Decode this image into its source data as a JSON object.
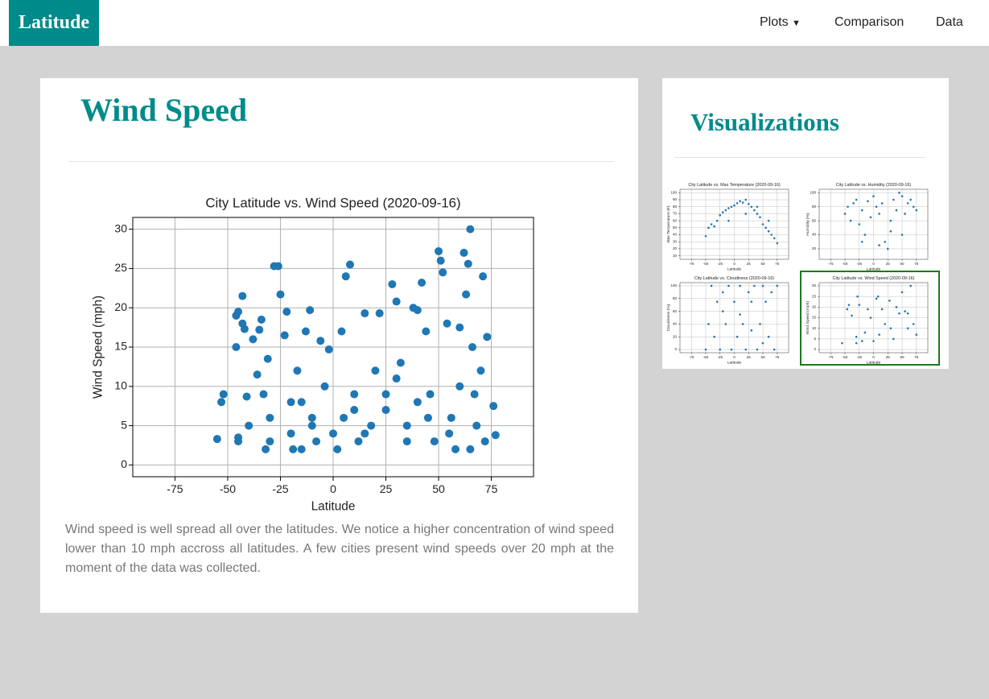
{
  "navbar": {
    "brand": "Latitude",
    "links": [
      "Plots",
      "Comparison",
      "Data"
    ]
  },
  "main": {
    "title": "Wind Speed",
    "chart_data": {
      "type": "scatter",
      "title": "City Latitude vs. Wind Speed (2020-09-16)",
      "x_label": "Latitude",
      "y_label": "Wind Speed (mph)",
      "color": "#1f77b4",
      "grid": true,
      "xlim": [
        -95,
        95
      ],
      "ylim": [
        -1.5,
        31.5
      ],
      "xticks": [
        -75,
        -50,
        -25,
        0,
        25,
        50,
        75
      ],
      "yticks": [
        0,
        5,
        10,
        15,
        20,
        25,
        30
      ],
      "x": [
        -55,
        -53,
        -52,
        -46,
        -45,
        -46,
        -45,
        -45,
        -43,
        -43,
        -42,
        -41,
        -40,
        -38,
        -36,
        -35,
        -34,
        -33,
        -32,
        -31,
        -30,
        -28,
        -26,
        -25,
        -23,
        -22,
        -20,
        -19,
        -17,
        -15,
        -13,
        -11,
        -10,
        -8,
        -6,
        -4,
        -2,
        0,
        2,
        4,
        6,
        8,
        10,
        12,
        15,
        18,
        20,
        22,
        25,
        28,
        30,
        32,
        35,
        38,
        40,
        42,
        44,
        46,
        48,
        50,
        51,
        52,
        54,
        56,
        58,
        60,
        62,
        63,
        64,
        65,
        66,
        67,
        68,
        70,
        71,
        72,
        73,
        76,
        77,
        -30,
        -20,
        -10,
        5,
        15,
        25,
        35,
        45,
        55,
        65,
        -15,
        10,
        30,
        40,
        60
      ],
      "values": [
        3.3,
        8,
        9,
        19,
        19.5,
        15,
        3.5,
        3,
        21.5,
        18,
        17.3,
        8.7,
        5,
        16,
        11.5,
        17.2,
        18.5,
        9,
        2,
        13.5,
        6,
        25.3,
        25.3,
        21.7,
        16.5,
        19.5,
        4,
        2,
        12,
        8,
        17,
        19.7,
        6,
        3,
        15.8,
        10,
        14.7,
        4,
        2,
        17,
        24,
        25.5,
        7,
        3,
        19.3,
        5,
        12,
        19.3,
        9,
        23,
        20.8,
        13,
        5,
        20,
        19.7,
        23.2,
        17,
        9,
        3,
        27.2,
        26,
        24.5,
        18,
        6,
        2,
        17.5,
        27,
        21.7,
        25.6,
        30,
        15,
        9,
        5,
        12,
        24,
        3,
        16.3,
        7.5,
        3.8,
        3,
        8,
        5,
        6,
        4,
        7,
        3,
        6,
        4,
        2,
        2,
        9,
        11,
        8,
        10
      ]
    },
    "description": "Wind speed is well spread all over the latitudes. We notice a higher concentration of wind speed lower than 10 mph accross all latitudes. A few cities present wind speeds over 20 mph at the moment of the data was collected."
  },
  "sidebar": {
    "title": "Visualizations",
    "thumbnails": [
      {
        "type": "scatter",
        "title": "City Latitude vs. Max Temperature (2020-09-16)",
        "x_label": "Latitude",
        "y_label": "Max Temperature (F)",
        "color": "#1f77b4",
        "grid": true,
        "xlim": [
          -95,
          95
        ],
        "ylim": [
          5,
          105
        ],
        "xticks": [
          -75,
          -50,
          -25,
          0,
          25,
          50,
          75
        ],
        "yticks": [
          10,
          20,
          30,
          40,
          50,
          60,
          70,
          80,
          90,
          100
        ],
        "x": [
          -50,
          -45,
          -40,
          -35,
          -30,
          -25,
          -20,
          -15,
          -10,
          -5,
          0,
          5,
          10,
          15,
          20,
          25,
          30,
          35,
          40,
          45,
          50,
          55,
          60,
          65,
          70,
          75,
          -10,
          20,
          40,
          60
        ],
        "values": [
          38,
          50,
          55,
          52,
          60,
          68,
          72,
          75,
          78,
          80,
          82,
          85,
          88,
          86,
          90,
          84,
          80,
          75,
          70,
          65,
          55,
          50,
          45,
          40,
          35,
          28,
          60,
          70,
          80,
          60
        ]
      },
      {
        "type": "scatter",
        "title": "City Latitude vs. Humidity (2020-09-16)",
        "x_label": "Latitude",
        "y_label": "Humidity (%)",
        "color": "#1f77b4",
        "grid": true,
        "xlim": [
          -95,
          95
        ],
        "ylim": [
          5,
          105
        ],
        "xticks": [
          -75,
          -50,
          -25,
          0,
          25,
          50,
          75
        ],
        "yticks": [
          20,
          40,
          60,
          80,
          100
        ],
        "x": [
          -50,
          -45,
          -40,
          -35,
          -30,
          -25,
          -20,
          -15,
          -10,
          -5,
          0,
          5,
          10,
          15,
          20,
          25,
          30,
          35,
          40,
          45,
          50,
          55,
          60,
          65,
          70,
          75,
          -20,
          10,
          30,
          50
        ],
        "values": [
          70,
          80,
          60,
          85,
          90,
          55,
          75,
          40,
          88,
          65,
          95,
          80,
          70,
          85,
          30,
          20,
          60,
          90,
          75,
          100,
          95,
          70,
          85,
          90,
          80,
          75,
          30,
          25,
          45,
          40
        ]
      },
      {
        "type": "scatter",
        "title": "City Latitude vs. Cloudiness (2020-09-16)",
        "x_label": "Latitude",
        "y_label": "Cloudiness (%)",
        "color": "#1f77b4",
        "grid": true,
        "xlim": [
          -95,
          95
        ],
        "ylim": [
          -5,
          105
        ],
        "xticks": [
          -75,
          -50,
          -25,
          0,
          25,
          50,
          75
        ],
        "yticks": [
          0,
          20,
          40,
          60,
          80,
          100
        ],
        "x": [
          -50,
          -45,
          -40,
          -35,
          -30,
          -25,
          -20,
          -15,
          -10,
          -5,
          0,
          5,
          10,
          15,
          20,
          25,
          30,
          35,
          40,
          45,
          50,
          55,
          60,
          65,
          70,
          75,
          -20,
          10,
          30,
          50
        ],
        "values": [
          0,
          40,
          100,
          20,
          75,
          0,
          90,
          40,
          100,
          0,
          75,
          20,
          100,
          40,
          0,
          90,
          75,
          100,
          0,
          40,
          100,
          75,
          20,
          90,
          0,
          100,
          60,
          55,
          30,
          10
        ]
      },
      {
        "type": "scatter",
        "title": "City Latitude vs. Wind Speed (2020-09-16)",
        "x_label": "Latitude",
        "y_label": "Wind Speed (mph)",
        "color": "#1f77b4",
        "grid": true,
        "xlim": [
          -95,
          95
        ],
        "ylim": [
          -1.5,
          31.5
        ],
        "xticks": [
          -75,
          -50,
          -25,
          0,
          25,
          50,
          75
        ],
        "yticks": [
          0,
          5,
          10,
          15,
          20,
          25,
          30
        ],
        "x": [
          -55,
          -46,
          -43,
          -38,
          -30,
          -28,
          -25,
          -20,
          -15,
          -10,
          -5,
          0,
          5,
          8,
          15,
          20,
          28,
          35,
          40,
          45,
          50,
          55,
          60,
          65,
          70,
          75,
          -30,
          10,
          30,
          60
        ],
        "values": [
          3,
          19,
          21,
          16,
          6,
          25,
          21,
          4,
          8,
          19,
          15,
          4,
          24,
          25,
          19,
          12,
          23,
          5,
          20,
          17,
          27,
          18,
          17,
          30,
          12,
          7,
          3,
          7,
          10,
          10
        ]
      }
    ]
  }
}
